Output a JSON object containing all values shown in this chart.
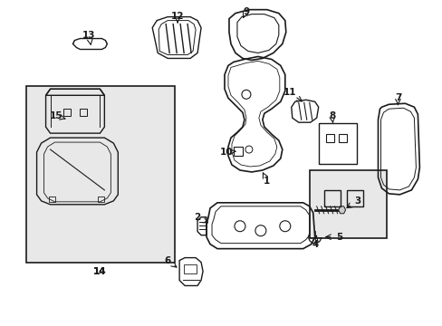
{
  "background_color": "#ffffff",
  "line_color": "#1a1a1a",
  "gray_fill": "#e8e8e8",
  "fig_width": 4.89,
  "fig_height": 3.6,
  "dpi": 100
}
